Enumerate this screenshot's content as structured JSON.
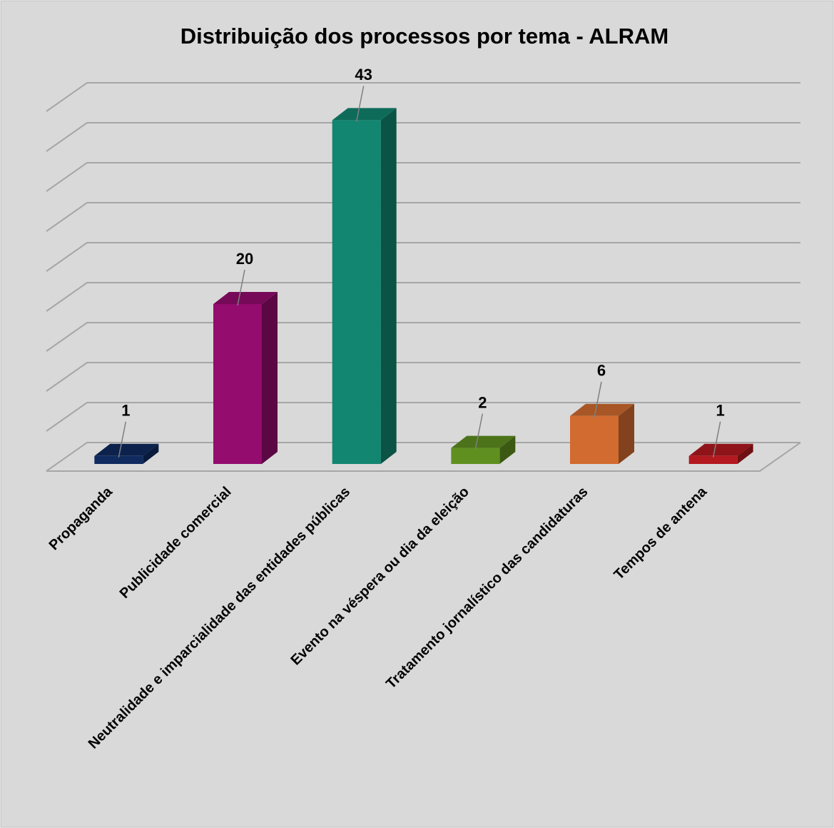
{
  "chart_data": {
    "type": "bar3d",
    "title": "Distribuição dos processos por tema - ALRAM",
    "categories": [
      "Propaganda",
      "Publicidade comercial",
      "Neutralidade e imparcialidade das entidades públicas",
      "Evento na véspera ou dia da eleição",
      "Tratamento jornalístico das candidaturas",
      "Tempos de antena"
    ],
    "values": [
      1,
      20,
      43,
      2,
      6,
      1
    ],
    "colors": [
      "#0f2b5f",
      "#930c6e",
      "#128670",
      "#5f901f",
      "#d26b2f",
      "#b3191f"
    ],
    "ylim": [
      0,
      45
    ],
    "yticks": [
      0,
      5,
      10,
      15,
      20,
      25,
      30,
      35,
      40,
      45
    ],
    "grid": true
  }
}
